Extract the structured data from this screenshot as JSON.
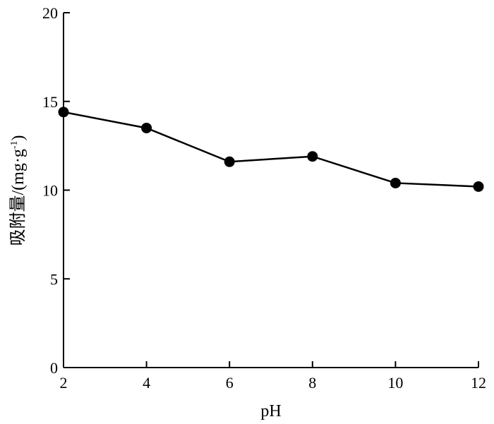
{
  "chart_data": {
    "type": "line",
    "title": "",
    "xlabel": "pH",
    "ylabel": "吸附量/(mg·g⁻¹)",
    "ylabel_parts": {
      "main": "吸附量/(mg·g",
      "sup": "-1",
      "close": ")"
    },
    "xlim": [
      2,
      12
    ],
    "ylim": [
      0,
      20
    ],
    "x_ticks": [
      2,
      4,
      6,
      8,
      10,
      12
    ],
    "y_ticks": [
      0,
      5,
      10,
      15,
      20
    ],
    "grid": false,
    "legend": "none",
    "series": [
      {
        "x": [
          2,
          4,
          6,
          8,
          10,
          12
        ],
        "y": [
          14.4,
          13.5,
          11.6,
          11.9,
          10.4,
          10.2
        ],
        "marker": "filled-circle",
        "color": "#000000"
      }
    ]
  }
}
